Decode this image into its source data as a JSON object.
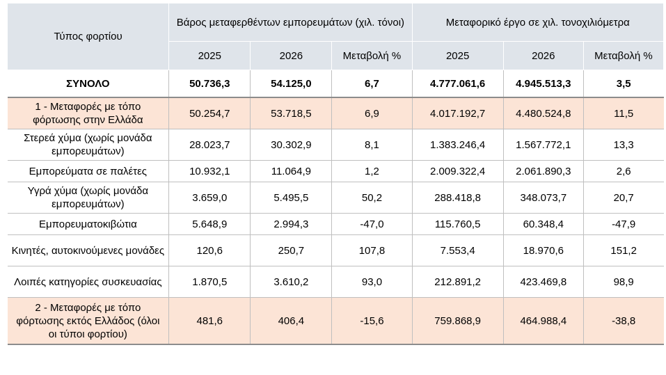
{
  "header": {
    "type_label": "Τύπος φορτίου",
    "group1_label": "Βάρος μεταφερθέντων εμπορευμάτων (χιλ. τόνοι)",
    "group2_label": "Μεταφορικό έργο σε χιλ. τονοχιλιόμετρα",
    "g1_year1": "2025",
    "g1_year2": "2026",
    "g1_change": "Μεταβολή %",
    "g2_year1": "2025",
    "g2_year2": "2026",
    "g2_change": "Μεταβολή %"
  },
  "rows": [
    {
      "label": "ΣΥΝΟΛΟ",
      "w2025": "50.736,3",
      "w2026": "54.125,0",
      "wchg": "6,7",
      "t2025": "4.777.061,6",
      "t2026": "4.945.513,3",
      "tchg": "3,5"
    },
    {
      "label": "1 - Μεταφορές με τόπο φόρτωσης στην Ελλάδα",
      "w2025": "50.254,7",
      "w2026": "53.718,5",
      "wchg": "6,9",
      "t2025": "4.017.192,7",
      "t2026": "4.480.524,8",
      "tchg": "11,5"
    },
    {
      "label": "Στερεά χύμα (χωρίς μονάδα εμπορευμάτων)",
      "w2025": "28.023,7",
      "w2026": "30.302,9",
      "wchg": "8,1",
      "t2025": "1.383.246,4",
      "t2026": "1.567.772,1",
      "tchg": "13,3"
    },
    {
      "label": "Εμπορεύματα σε παλέτες",
      "w2025": "10.932,1",
      "w2026": "11.064,9",
      "wchg": "1,2",
      "t2025": "2.009.322,4",
      "t2026": "2.061.890,3",
      "tchg": "2,6"
    },
    {
      "label": "Υγρά χύμα (χωρίς μονάδα εμπορευμάτων)",
      "w2025": "3.659,0",
      "w2026": "5.495,5",
      "wchg": "50,2",
      "t2025": "288.418,8",
      "t2026": "348.073,7",
      "tchg": "20,7"
    },
    {
      "label": "Εμπορευματοκιβώτια",
      "w2025": "5.648,9",
      "w2026": "2.994,3",
      "wchg": "-47,0",
      "t2025": "115.760,5",
      "t2026": "60.348,4",
      "tchg": "-47,9"
    },
    {
      "label": "Κινητές, αυτοκινούμενες μονάδες",
      "w2025": "120,6",
      "w2026": "250,7",
      "wchg": "107,8",
      "t2025": "7.553,4",
      "t2026": "18.970,6",
      "tchg": "151,2"
    },
    {
      "label": "Λοιπές κατηγορίες συσκευασίας",
      "w2025": "1.870,5",
      "w2026": "3.610,2",
      "wchg": "93,0",
      "t2025": "212.891,2",
      "t2026": "423.469,8",
      "tchg": "98,9"
    },
    {
      "label": "2 - Μεταφορές με τόπο φόρτωσης εκτός Ελλάδος (όλοι οι τύποι φορτίου)",
      "w2025": "481,6",
      "w2026": "406,4",
      "wchg": "-15,6",
      "t2025": "759.868,9",
      "t2026": "464.988,4",
      "tchg": "-38,8"
    }
  ],
  "colors": {
    "header_bg": "#dfe4ea",
    "highlight_bg": "#fce4d6"
  }
}
